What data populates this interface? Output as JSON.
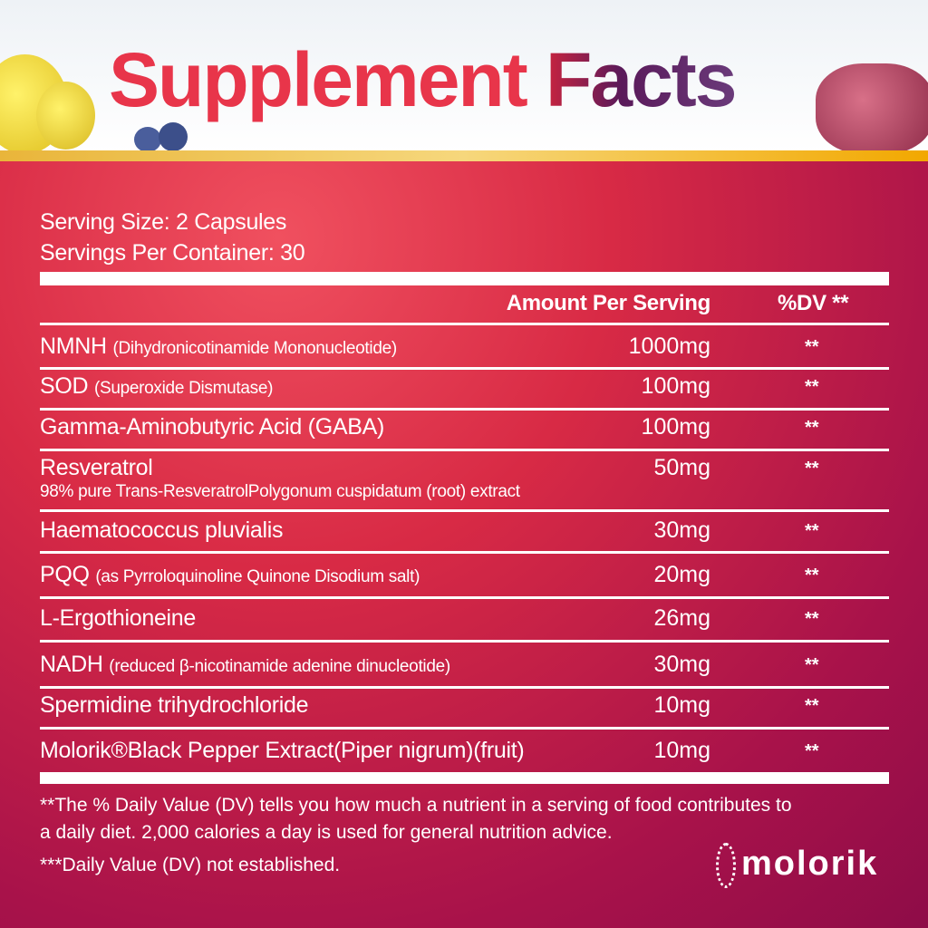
{
  "title": {
    "word1": "Supplement",
    "word2": "Facts"
  },
  "serving_size": "Serving Size: 2 Capsules",
  "servings_per_container": "Servings Per Container: 30",
  "header": {
    "amount": "Amount Per Serving",
    "dv": "%DV **"
  },
  "rows": [
    {
      "name": "NMNH",
      "detail": "(Dihydronicotinamide Mononucleotide)",
      "amount": "1000mg",
      "dv": "**"
    },
    {
      "name": "SOD",
      "detail": "(Superoxide Dismutase)",
      "amount": "100mg",
      "dv": "**"
    },
    {
      "name": "Gamma-Aminobutyric Acid (GABA)",
      "detail": "",
      "amount": "100mg",
      "dv": "**"
    },
    {
      "name": "Resveratrol",
      "detail": "98% pure Trans-ResveratrolPolygonum cuspidatum (root) extract",
      "amount": "50mg",
      "dv": "**"
    },
    {
      "name": "Haematococcus pluvialis",
      "detail": "",
      "amount": "30mg",
      "dv": "**"
    },
    {
      "name": "PQQ",
      "detail": "(as Pyrroloquinoline Quinone Disodium salt)",
      "amount": "20mg",
      "dv": "**"
    },
    {
      "name": "L-Ergothioneine",
      "detail": "",
      "amount": "26mg",
      "dv": "**"
    },
    {
      "name": "NADH",
      "detail": "(reduced β-nicotinamide adenine dinucleotide)",
      "amount": "30mg",
      "dv": "**"
    },
    {
      "name": "Spermidine trihydrochloride",
      "detail": "",
      "amount": "10mg",
      "dv": "**"
    },
    {
      "name": "Molorik®Black Pepper Extract(Piper nigrum)(fruit)",
      "detail": "",
      "amount": "10mg",
      "dv": "**"
    }
  ],
  "footnotes": {
    "line1": "**The % Daily Value (DV) tells you how much a nutrient in a serving of food contributes to",
    "line2": "a daily diet. 2,000 calories a day is used for general nutrition advice.",
    "line3": "***Daily Value (DV) not established."
  },
  "brand": "molorik",
  "colors": {
    "title_red": "#e8354a",
    "title_purple": "#5a1a5a",
    "panel": "#d82a45",
    "gold": "#f2c04a"
  }
}
